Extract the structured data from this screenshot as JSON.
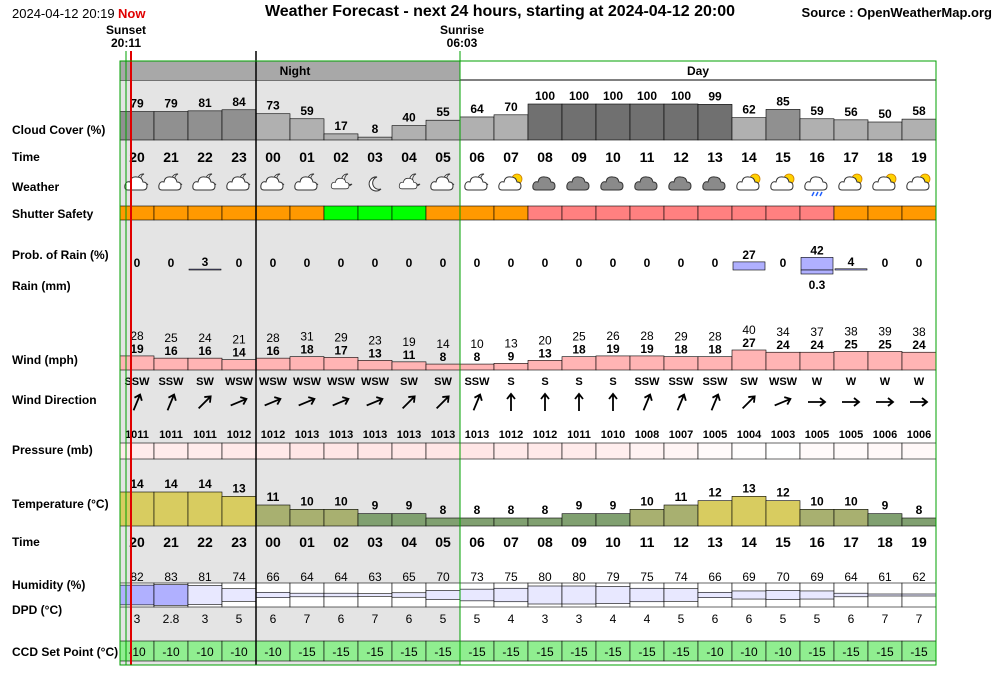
{
  "header": {
    "timestamp": "2024-04-12 20:19",
    "now_label": "Now",
    "title": "Weather Forecast - next 24 hours, starting at 2024-04-12 20:00",
    "source": "Source : OpenWeatherMap.org"
  },
  "sun": {
    "sunset_label": "Sunset",
    "sunset_time": "20:11",
    "sunrise_label": "Sunrise",
    "sunrise_time": "06:03"
  },
  "periods": {
    "night": "Night",
    "day": "Day"
  },
  "colors": {
    "night_bg": "#e4e4e4",
    "cloud_dark": "#707070",
    "cloud_mid": "#909090",
    "cloud_light": "#b0b0b0",
    "shutter_orange": "#ff9900",
    "shutter_green": "#00ff00",
    "shutter_pink": "#ff8080",
    "rain_bar": "#b0b0ff",
    "wind_bar": "#ffb4b4",
    "temp_yellow": "#d8cc60",
    "temp_olive": "#a8b070",
    "temp_green": "#80a070",
    "ccd_green": "#90ee90",
    "now_line": "#e00000",
    "sunset_line": "#00a000"
  },
  "rows": {
    "cloud_cover": "Cloud Cover (%)",
    "time": "Time",
    "weather": "Weather",
    "shutter_safety": "Shutter Safety",
    "prob_rain": "Prob. of Rain (%)",
    "rain": "Rain (mm)",
    "wind": "Wind (mph)",
    "wind_direction": "Wind Direction",
    "pressure": "Pressure (mb)",
    "temperature": "Temperature (°C)",
    "humidity": "Humidity (%)",
    "dpd": "DPD (°C)",
    "ccd": "CCD Set Point (°C)"
  },
  "chart_data": {
    "type": "table",
    "hours": [
      "20",
      "21",
      "22",
      "23",
      "00",
      "01",
      "02",
      "03",
      "04",
      "05",
      "06",
      "07",
      "08",
      "09",
      "10",
      "11",
      "12",
      "13",
      "14",
      "15",
      "16",
      "17",
      "18",
      "19"
    ],
    "cloud_cover": [
      79,
      79,
      81,
      84,
      73,
      59,
      17,
      8,
      40,
      55,
      64,
      70,
      100,
      100,
      100,
      100,
      100,
      99,
      62,
      85,
      59,
      56,
      50,
      58
    ],
    "weather_icons": [
      "partly-cloudy-night",
      "partly-cloudy-night",
      "partly-cloudy-night",
      "partly-cloudy-night",
      "partly-cloudy-night",
      "partly-cloudy-night",
      "cloud-moon",
      "moon",
      "cloud-moon",
      "partly-cloudy-night",
      "partly-cloudy-night",
      "partly-cloudy-day",
      "overcast",
      "overcast",
      "overcast",
      "overcast",
      "overcast",
      "overcast",
      "partly-cloudy-day",
      "partly-cloudy-day",
      "cloud-rain",
      "partly-cloudy-day",
      "partly-cloudy-day",
      "partly-cloudy-day"
    ],
    "shutter_safety": [
      "orange",
      "orange",
      "orange",
      "orange",
      "orange",
      "orange",
      "green",
      "green",
      "green",
      "orange",
      "orange",
      "orange",
      "pink",
      "pink",
      "pink",
      "pink",
      "pink",
      "pink",
      "pink",
      "pink",
      "pink",
      "orange",
      "orange",
      "orange"
    ],
    "prob_rain": [
      0,
      0,
      3,
      0,
      0,
      0,
      0,
      0,
      0,
      0,
      0,
      0,
      0,
      0,
      0,
      0,
      0,
      0,
      27,
      0,
      42,
      4,
      0,
      0
    ],
    "rain_label_index": 20,
    "rain_label": "0.3",
    "wind_gust": [
      28,
      25,
      24,
      21,
      28,
      31,
      29,
      23,
      19,
      14,
      10,
      13,
      20,
      25,
      26,
      28,
      29,
      28,
      40,
      34,
      37,
      38,
      39,
      38
    ],
    "wind_speed": [
      19,
      16,
      16,
      14,
      16,
      18,
      17,
      13,
      11,
      8,
      8,
      9,
      13,
      18,
      19,
      19,
      18,
      18,
      27,
      24,
      24,
      25,
      25,
      24
    ],
    "wind_direction": [
      "SSW",
      "SSW",
      "SW",
      "WSW",
      "WSW",
      "WSW",
      "WSW",
      "WSW",
      "SW",
      "SW",
      "SSW",
      "S",
      "S",
      "S",
      "S",
      "SSW",
      "SSW",
      "SSW",
      "SW",
      "WSW",
      "W",
      "W",
      "W",
      "W"
    ],
    "pressure": [
      1011,
      1011,
      1011,
      1012,
      1012,
      1013,
      1013,
      1013,
      1013,
      1013,
      1013,
      1012,
      1012,
      1011,
      1010,
      1008,
      1007,
      1005,
      1004,
      1003,
      1005,
      1005,
      1006,
      1006
    ],
    "temperature": [
      14,
      14,
      14,
      13,
      11,
      10,
      10,
      9,
      9,
      8,
      8,
      8,
      8,
      9,
      9,
      10,
      11,
      12,
      13,
      12,
      10,
      10,
      9,
      8
    ],
    "humidity": [
      82,
      83,
      81,
      74,
      66,
      64,
      64,
      63,
      65,
      70,
      73,
      75,
      80,
      80,
      79,
      75,
      74,
      66,
      69,
      70,
      69,
      64,
      61,
      62
    ],
    "dpd": [
      "3",
      "2.8",
      "3",
      "5",
      "6",
      "7",
      "6",
      "7",
      "6",
      "5",
      "5",
      "4",
      "3",
      "3",
      "4",
      "4",
      "5",
      "6",
      "6",
      "5",
      "5",
      "6",
      "7",
      "7"
    ],
    "ccd_set_point": [
      -10,
      -10,
      -10,
      -10,
      -10,
      -15,
      -15,
      -15,
      -15,
      -15,
      -15,
      -15,
      -15,
      -15,
      -15,
      -15,
      -15,
      -10,
      -10,
      -10,
      -15,
      -15,
      -15,
      -15
    ]
  }
}
